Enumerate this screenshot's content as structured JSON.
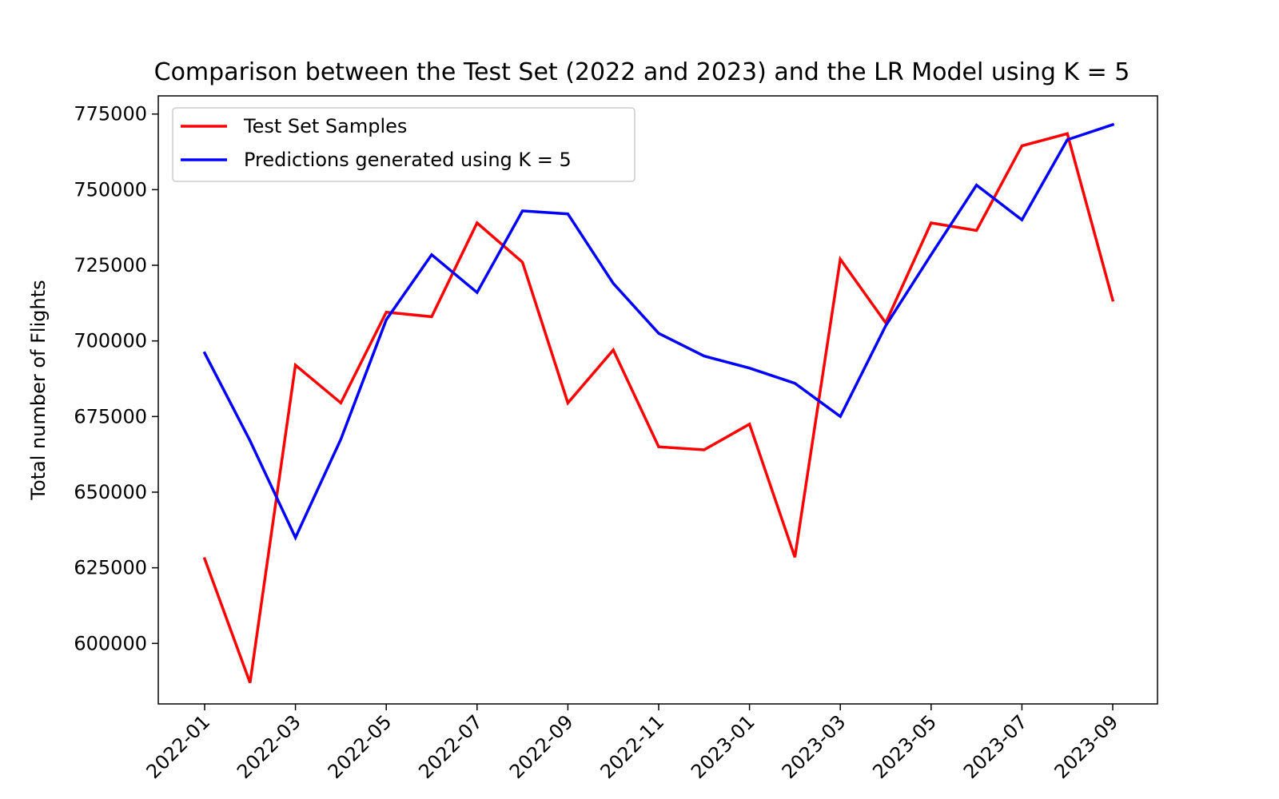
{
  "chart_data": {
    "type": "line",
    "title": "Comparison between the Test Set (2022 and 2023) and the LR Model using K = 5",
    "xlabel": "",
    "ylabel": "Total number of Flights",
    "x": [
      "2022-01",
      "2022-02",
      "2022-03",
      "2022-04",
      "2022-05",
      "2022-06",
      "2022-07",
      "2022-08",
      "2022-09",
      "2022-10",
      "2022-11",
      "2022-12",
      "2023-01",
      "2023-02",
      "2023-03",
      "2023-04",
      "2023-05",
      "2023-06",
      "2023-07",
      "2023-08",
      "2023-09"
    ],
    "x_tick_labels": [
      "2022-01",
      "2022-03",
      "2022-05",
      "2022-07",
      "2022-09",
      "2022-11",
      "2023-01",
      "2023-03",
      "2023-05",
      "2023-07",
      "2023-09"
    ],
    "y_ticks": [
      600000,
      625000,
      650000,
      675000,
      700000,
      725000,
      750000,
      775000
    ],
    "ylim": [
      580000,
      781000
    ],
    "grid": false,
    "legend_position": "upper-left",
    "series": [
      {
        "name": "Test Set Samples",
        "color": "#ff0000",
        "values": [
          628000,
          587000,
          692000,
          679500,
          709500,
          708000,
          739000,
          726000,
          679500,
          697000,
          665000,
          664000,
          672500,
          628500,
          727000,
          706000,
          739000,
          736500,
          764500,
          768500,
          713500
        ]
      },
      {
        "name": "Predictions generated using K = 5",
        "color": "#0000ff",
        "values": [
          696000,
          667000,
          635000,
          667500,
          707000,
          728500,
          716000,
          743000,
          742000,
          719000,
          702500,
          695000,
          691000,
          686000,
          675000,
          705000,
          728500,
          751500,
          740000,
          766500,
          771500
        ]
      }
    ]
  }
}
